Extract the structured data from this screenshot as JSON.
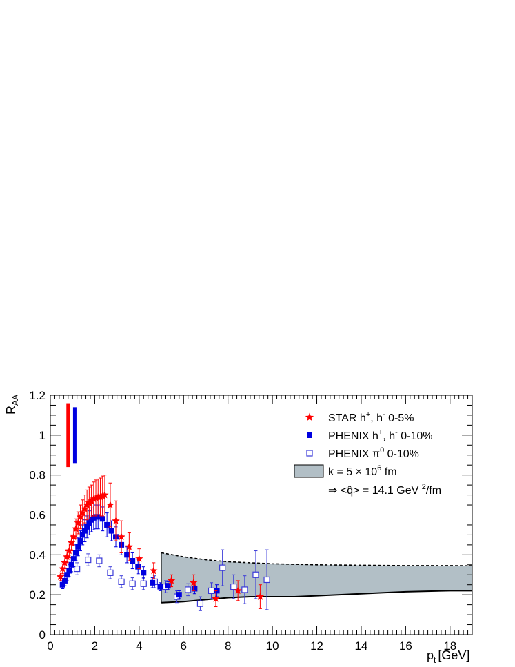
{
  "chart_data": {
    "type": "scatter",
    "xlabel": "p",
    "xlabel_sub": "t",
    "xlabel_unit": "[GeV]",
    "ylabel": "R",
    "ylabel_sub": "AA",
    "xlim": [
      0,
      19
    ],
    "ylim": [
      0,
      1.2
    ],
    "x_ticks": [
      "0",
      "2",
      "4",
      "6",
      "8",
      "10",
      "12",
      "14",
      "16",
      "18"
    ],
    "y_ticks": [
      "0",
      "0.2",
      "0.4",
      "0.6",
      "0.8",
      "1",
      "1.2"
    ],
    "grid": false,
    "legend_position": "top-right",
    "colors": {
      "star": "#ff0000",
      "phenix_h": "#0000e0",
      "phenix_pi0": "#3a3ad8",
      "band_fill": "#b2bfc6"
    },
    "normalization_bars": [
      {
        "series": "STAR",
        "x": 0.8,
        "y_low": 0.84,
        "y_high": 1.16
      },
      {
        "series": "PHENIX",
        "x": 1.1,
        "y_low": 0.86,
        "y_high": 1.14
      }
    ],
    "series": [
      {
        "name": "STAR",
        "legend_label": [
          "STAR  h",
          "+",
          ", h",
          "-",
          "  0-5%"
        ],
        "marker": "star",
        "points": [
          {
            "x": 0.45,
            "y": 0.29,
            "err": 0.02
          },
          {
            "x": 0.55,
            "y": 0.33,
            "err": 0.025
          },
          {
            "x": 0.65,
            "y": 0.36,
            "err": 0.03
          },
          {
            "x": 0.75,
            "y": 0.39,
            "err": 0.03
          },
          {
            "x": 0.85,
            "y": 0.42,
            "err": 0.035
          },
          {
            "x": 0.95,
            "y": 0.46,
            "err": 0.04
          },
          {
            "x": 1.05,
            "y": 0.49,
            "err": 0.045
          },
          {
            "x": 1.15,
            "y": 0.53,
            "err": 0.05
          },
          {
            "x": 1.25,
            "y": 0.56,
            "err": 0.055
          },
          {
            "x": 1.35,
            "y": 0.59,
            "err": 0.06
          },
          {
            "x": 1.45,
            "y": 0.61,
            "err": 0.065
          },
          {
            "x": 1.55,
            "y": 0.63,
            "err": 0.07
          },
          {
            "x": 1.65,
            "y": 0.65,
            "err": 0.075
          },
          {
            "x": 1.75,
            "y": 0.66,
            "err": 0.08
          },
          {
            "x": 1.85,
            "y": 0.67,
            "err": 0.08
          },
          {
            "x": 1.95,
            "y": 0.68,
            "err": 0.085
          },
          {
            "x": 2.05,
            "y": 0.685,
            "err": 0.09
          },
          {
            "x": 2.15,
            "y": 0.69,
            "err": 0.09
          },
          {
            "x": 2.25,
            "y": 0.69,
            "err": 0.095
          },
          {
            "x": 2.35,
            "y": 0.695,
            "err": 0.1
          },
          {
            "x": 2.45,
            "y": 0.7,
            "err": 0.1
          },
          {
            "x": 2.7,
            "y": 0.65,
            "err": 0.11
          },
          {
            "x": 2.95,
            "y": 0.57,
            "err": 0.1
          },
          {
            "x": 3.2,
            "y": 0.49,
            "err": 0.08
          },
          {
            "x": 3.55,
            "y": 0.44,
            "err": 0.07
          },
          {
            "x": 4.0,
            "y": 0.38,
            "err": 0.05
          },
          {
            "x": 4.65,
            "y": 0.32,
            "err": 0.04
          },
          {
            "x": 5.45,
            "y": 0.27,
            "err": 0.03
          },
          {
            "x": 6.45,
            "y": 0.26,
            "err": 0.04
          },
          {
            "x": 7.45,
            "y": 0.18,
            "err": 0.04
          },
          {
            "x": 8.45,
            "y": 0.22,
            "err": 0.05
          },
          {
            "x": 9.45,
            "y": 0.19,
            "err": 0.06
          }
        ]
      },
      {
        "name": "PHENIX h",
        "legend_label": [
          "PHENIX  h",
          "+",
          ", h",
          "-",
          "  0-10%"
        ],
        "marker": "filled-square",
        "points": [
          {
            "x": 0.55,
            "y": 0.25,
            "err": 0.02
          },
          {
            "x": 0.65,
            "y": 0.27,
            "err": 0.025
          },
          {
            "x": 0.75,
            "y": 0.3,
            "err": 0.03
          },
          {
            "x": 0.85,
            "y": 0.32,
            "err": 0.03
          },
          {
            "x": 0.95,
            "y": 0.35,
            "err": 0.035
          },
          {
            "x": 1.05,
            "y": 0.38,
            "err": 0.04
          },
          {
            "x": 1.15,
            "y": 0.41,
            "err": 0.04
          },
          {
            "x": 1.25,
            "y": 0.44,
            "err": 0.045
          },
          {
            "x": 1.35,
            "y": 0.47,
            "err": 0.05
          },
          {
            "x": 1.45,
            "y": 0.5,
            "err": 0.05
          },
          {
            "x": 1.55,
            "y": 0.52,
            "err": 0.055
          },
          {
            "x": 1.65,
            "y": 0.54,
            "err": 0.055
          },
          {
            "x": 1.75,
            "y": 0.56,
            "err": 0.06
          },
          {
            "x": 1.85,
            "y": 0.575,
            "err": 0.06
          },
          {
            "x": 1.95,
            "y": 0.585,
            "err": 0.06
          },
          {
            "x": 2.05,
            "y": 0.59,
            "err": 0.06
          },
          {
            "x": 2.15,
            "y": 0.59,
            "err": 0.06
          },
          {
            "x": 2.35,
            "y": 0.58,
            "err": 0.06
          },
          {
            "x": 2.55,
            "y": 0.55,
            "err": 0.06
          },
          {
            "x": 2.75,
            "y": 0.52,
            "err": 0.05
          },
          {
            "x": 2.95,
            "y": 0.49,
            "err": 0.05
          },
          {
            "x": 3.2,
            "y": 0.45,
            "err": 0.05
          },
          {
            "x": 3.45,
            "y": 0.4,
            "err": 0.04
          },
          {
            "x": 3.7,
            "y": 0.37,
            "err": 0.04
          },
          {
            "x": 3.95,
            "y": 0.34,
            "err": 0.035
          },
          {
            "x": 4.2,
            "y": 0.31,
            "err": 0.03
          },
          {
            "x": 4.6,
            "y": 0.26,
            "err": 0.025
          },
          {
            "x": 4.95,
            "y": 0.24,
            "err": 0.02
          },
          {
            "x": 5.3,
            "y": 0.245,
            "err": 0.02
          },
          {
            "x": 5.8,
            "y": 0.2,
            "err": 0.02
          },
          {
            "x": 6.5,
            "y": 0.23,
            "err": 0.025
          },
          {
            "x": 7.5,
            "y": 0.22,
            "err": 0.03
          }
        ]
      },
      {
        "name": "PHENIX pi0",
        "legend_label": [
          "PHENIX  π",
          "0",
          "  0-10%"
        ],
        "marker": "open-square",
        "points": [
          {
            "x": 1.2,
            "y": 0.33,
            "err": 0.03
          },
          {
            "x": 1.7,
            "y": 0.375,
            "err": 0.03
          },
          {
            "x": 2.2,
            "y": 0.37,
            "err": 0.03
          },
          {
            "x": 2.7,
            "y": 0.31,
            "err": 0.03
          },
          {
            "x": 3.2,
            "y": 0.265,
            "err": 0.03
          },
          {
            "x": 3.7,
            "y": 0.255,
            "err": 0.03
          },
          {
            "x": 4.2,
            "y": 0.255,
            "err": 0.03
          },
          {
            "x": 4.7,
            "y": 0.265,
            "err": 0.03
          },
          {
            "x": 5.2,
            "y": 0.24,
            "err": 0.03
          },
          {
            "x": 5.7,
            "y": 0.19,
            "err": 0.03
          },
          {
            "x": 6.2,
            "y": 0.225,
            "err": 0.03
          },
          {
            "x": 6.75,
            "y": 0.155,
            "err": 0.035
          },
          {
            "x": 7.25,
            "y": 0.22,
            "err": 0.04
          },
          {
            "x": 7.75,
            "y": 0.335,
            "err": 0.09
          },
          {
            "x": 8.25,
            "y": 0.24,
            "err": 0.06
          },
          {
            "x": 8.75,
            "y": 0.225,
            "err": 0.07
          },
          {
            "x": 9.25,
            "y": 0.3,
            "err": 0.12
          },
          {
            "x": 9.75,
            "y": 0.275,
            "err": 0.15
          }
        ]
      }
    ],
    "band": {
      "legend_label": [
        "k = 5  × 10",
        "6",
        " fm"
      ],
      "upper": [
        [
          5,
          0.41
        ],
        [
          5.5,
          0.4
        ],
        [
          6,
          0.39
        ],
        [
          7,
          0.375
        ],
        [
          8,
          0.365
        ],
        [
          9,
          0.36
        ],
        [
          10,
          0.355
        ],
        [
          12,
          0.35
        ],
        [
          14,
          0.348
        ],
        [
          16,
          0.346
        ],
        [
          18,
          0.346
        ],
        [
          19,
          0.345
        ]
      ],
      "lower": [
        [
          5,
          0.16
        ],
        [
          6,
          0.165
        ],
        [
          7,
          0.175
        ],
        [
          8,
          0.185
        ],
        [
          9,
          0.19
        ],
        [
          11,
          0.19
        ],
        [
          12,
          0.195
        ],
        [
          14,
          0.205
        ],
        [
          15,
          0.21
        ],
        [
          16,
          0.215
        ],
        [
          18,
          0.22
        ],
        [
          19,
          0.22
        ]
      ]
    },
    "annotation": [
      "⇒ <",
      "q̂",
      "> = 14.1 GeV ",
      "2",
      "/fm"
    ]
  }
}
